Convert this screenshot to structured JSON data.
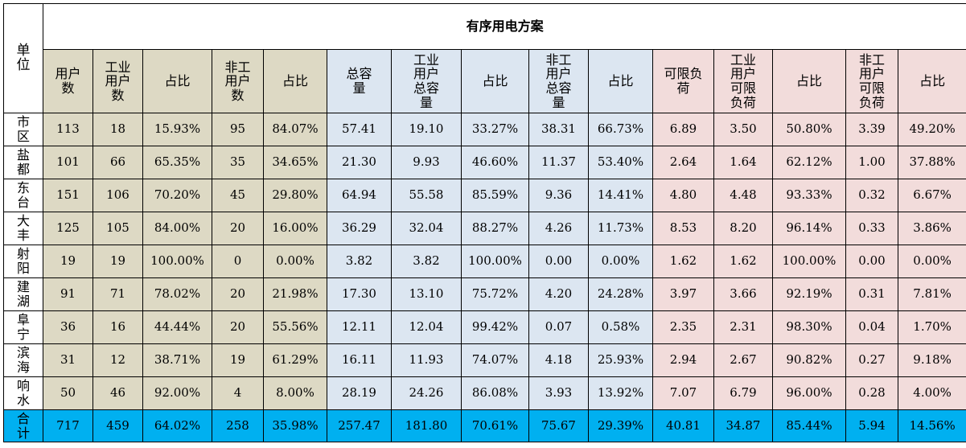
{
  "table": {
    "title": "有序用电方案",
    "unit_label": "单位",
    "columns": [
      {
        "label": "用户数",
        "group": "g1"
      },
      {
        "label": "工业用户数",
        "group": "g1"
      },
      {
        "label": "占比",
        "group": "g1"
      },
      {
        "label": "非工用户数",
        "group": "g1"
      },
      {
        "label": "占比",
        "group": "g1"
      },
      {
        "label": "总容量",
        "group": "g2"
      },
      {
        "label": "工业用户总容量",
        "group": "g2"
      },
      {
        "label": "占比",
        "group": "g2"
      },
      {
        "label": "非工用户总容量",
        "group": "g2"
      },
      {
        "label": "占比",
        "group": "g2"
      },
      {
        "label": "可限负荷",
        "group": "g3"
      },
      {
        "label": "工业用户可限负荷",
        "group": "g3"
      },
      {
        "label": "占比",
        "group": "g3"
      },
      {
        "label": "非工用户可限负荷",
        "group": "g3"
      },
      {
        "label": "占比",
        "group": "g3"
      }
    ],
    "group_colors": {
      "g1": "#ddd9c4",
      "g2": "#dce6f1",
      "g3": "#f2dcdb",
      "total": "#00b0f0"
    },
    "rows": [
      {
        "unit": "市区",
        "values": [
          "113",
          "18",
          "15.93%",
          "95",
          "84.07%",
          "57.41",
          "19.10",
          "33.27%",
          "38.31",
          "66.73%",
          "6.89",
          "3.50",
          "50.80%",
          "3.39",
          "49.20%"
        ]
      },
      {
        "unit": "盐都",
        "values": [
          "101",
          "66",
          "65.35%",
          "35",
          "34.65%",
          "21.30",
          "9.93",
          "46.60%",
          "11.37",
          "53.40%",
          "2.64",
          "1.64",
          "62.12%",
          "1.00",
          "37.88%"
        ]
      },
      {
        "unit": "东台",
        "values": [
          "151",
          "106",
          "70.20%",
          "45",
          "29.80%",
          "64.94",
          "55.58",
          "85.59%",
          "9.36",
          "14.41%",
          "4.80",
          "4.48",
          "93.33%",
          "0.32",
          "6.67%"
        ]
      },
      {
        "unit": "大丰",
        "values": [
          "125",
          "105",
          "84.00%",
          "20",
          "16.00%",
          "36.29",
          "32.04",
          "88.27%",
          "4.26",
          "11.73%",
          "8.53",
          "8.20",
          "96.14%",
          "0.33",
          "3.86%"
        ]
      },
      {
        "unit": "射阳",
        "values": [
          "19",
          "19",
          "100.00%",
          "0",
          "0.00%",
          "3.82",
          "3.82",
          "100.00%",
          "0.00",
          "0.00%",
          "1.62",
          "1.62",
          "100.00%",
          "0.00",
          "0.00%"
        ]
      },
      {
        "unit": "建湖",
        "values": [
          "91",
          "71",
          "78.02%",
          "20",
          "21.98%",
          "17.30",
          "13.10",
          "75.72%",
          "4.20",
          "24.28%",
          "3.97",
          "3.66",
          "92.19%",
          "0.31",
          "7.81%"
        ]
      },
      {
        "unit": "阜宁",
        "values": [
          "36",
          "16",
          "44.44%",
          "20",
          "55.56%",
          "12.11",
          "12.04",
          "99.42%",
          "0.07",
          "0.58%",
          "2.35",
          "2.31",
          "98.30%",
          "0.04",
          "1.70%"
        ]
      },
      {
        "unit": "滨海",
        "values": [
          "31",
          "12",
          "38.71%",
          "19",
          "61.29%",
          "16.11",
          "11.93",
          "74.07%",
          "4.18",
          "25.93%",
          "2.94",
          "2.67",
          "90.82%",
          "0.27",
          "9.18%"
        ]
      },
      {
        "unit": "响水",
        "values": [
          "50",
          "46",
          "92.00%",
          "4",
          "8.00%",
          "28.19",
          "24.26",
          "86.08%",
          "3.93",
          "13.92%",
          "7.07",
          "6.79",
          "96.00%",
          "0.28",
          "4.00%"
        ]
      }
    ],
    "total": {
      "unit": "合计",
      "values": [
        "717",
        "459",
        "64.02%",
        "258",
        "35.98%",
        "257.47",
        "181.80",
        "70.61%",
        "75.67",
        "29.39%",
        "40.81",
        "34.87",
        "85.44%",
        "5.94",
        "14.56%"
      ]
    }
  }
}
